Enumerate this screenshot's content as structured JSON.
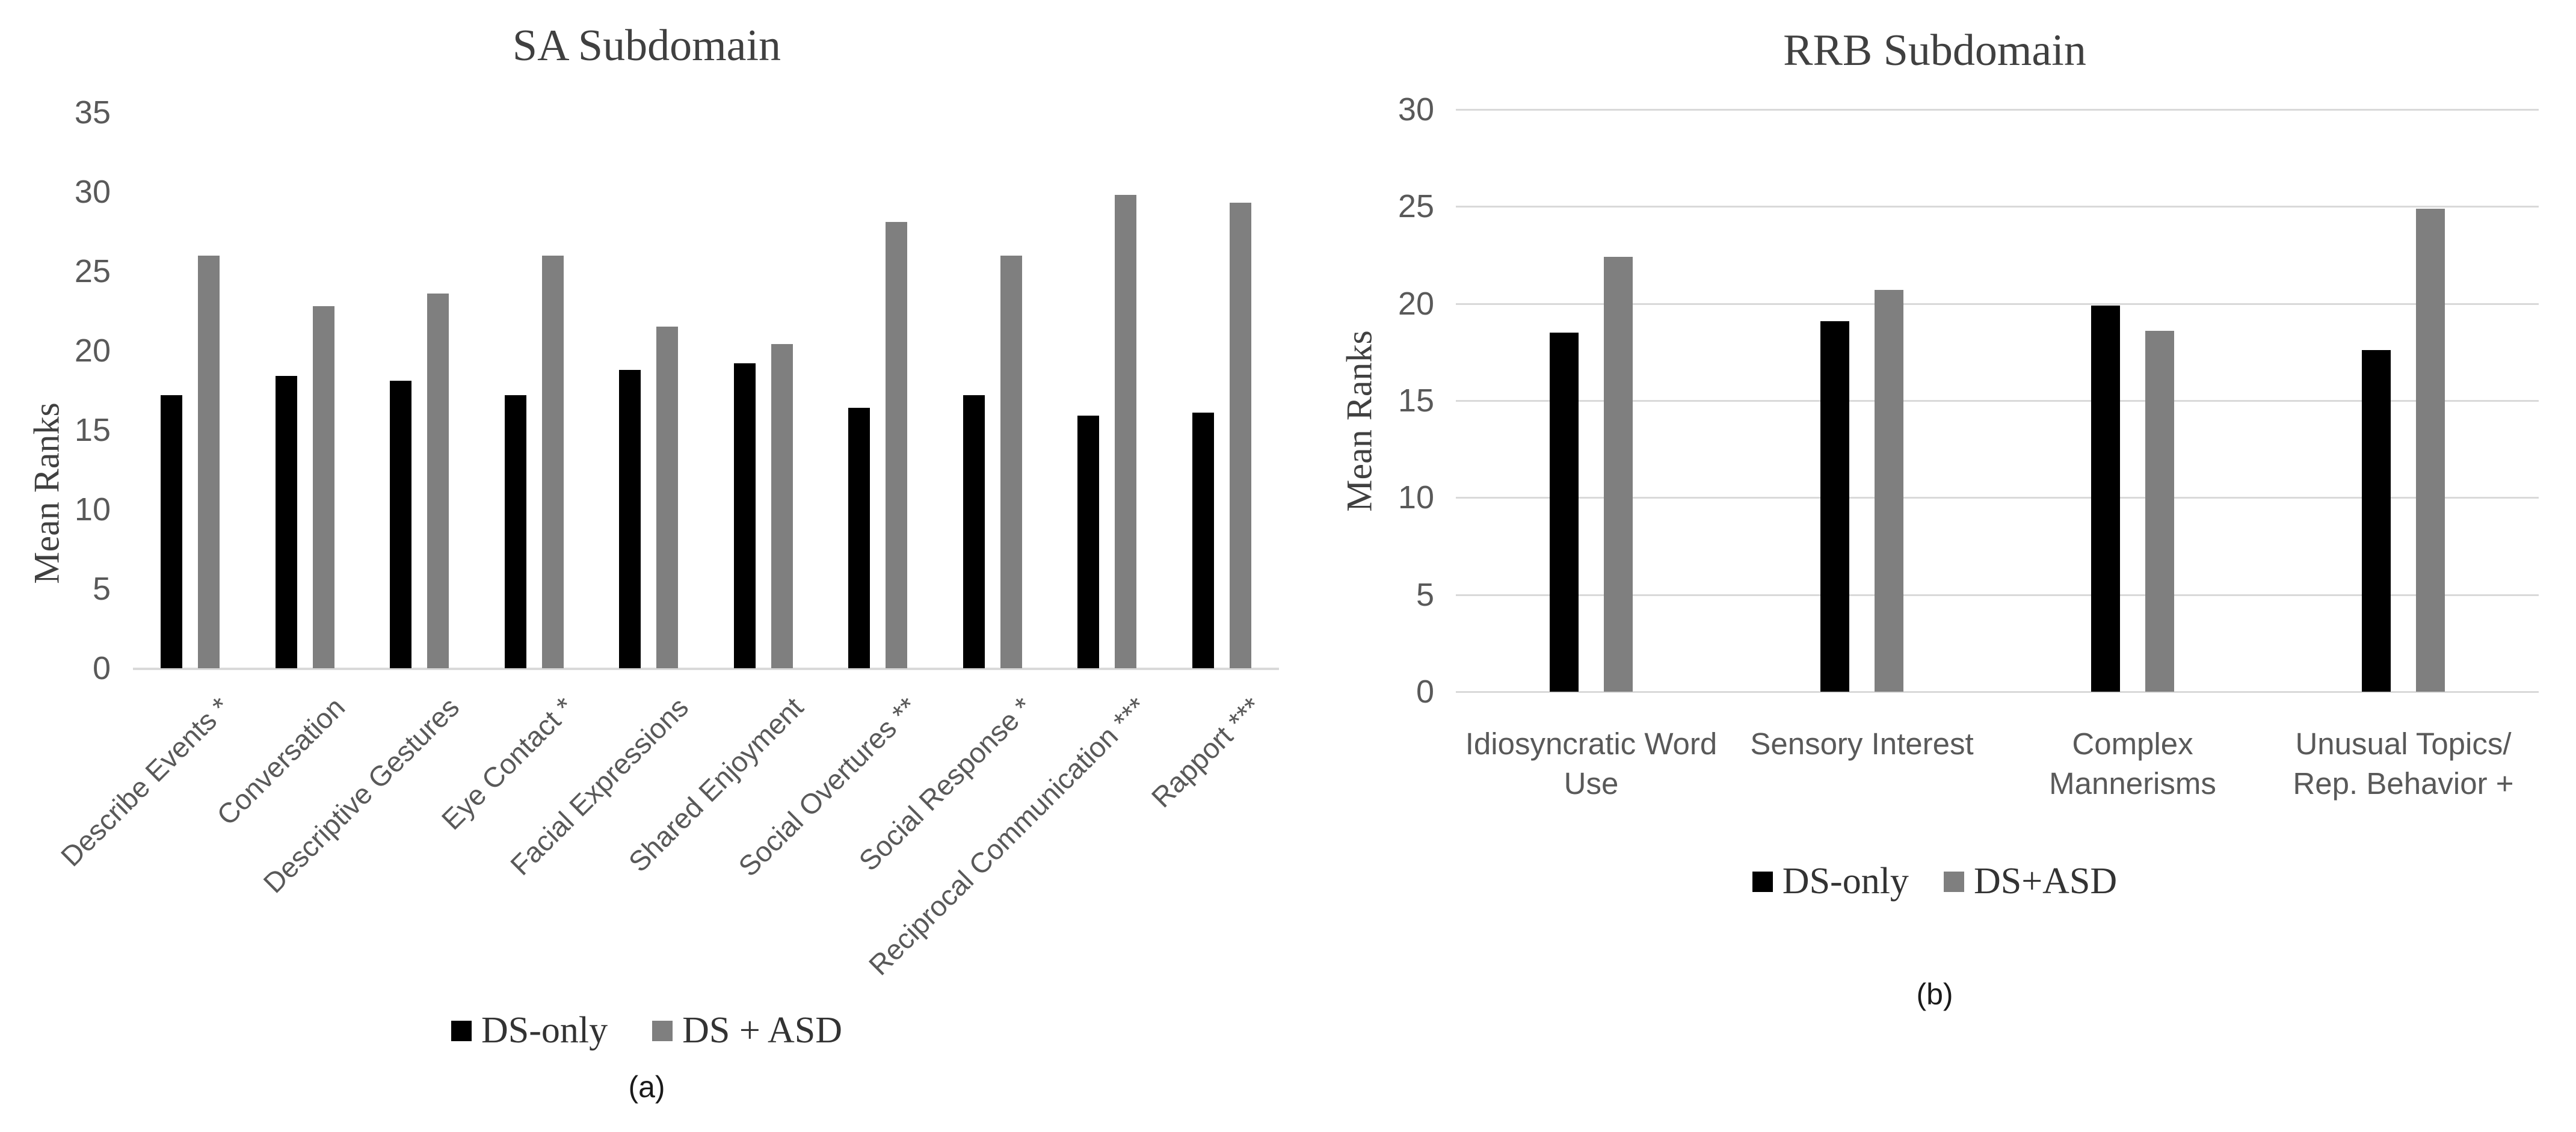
{
  "figure": {
    "captions": {
      "a": "(a)",
      "b": "(b)"
    }
  },
  "colors": {
    "ds_only_bar": "#000000",
    "ds_asd_bar": "#7f7f7f",
    "gridline": "#d9d9d9",
    "title_text": "#404040",
    "axis_text": "#595959"
  },
  "chart_data": [
    {
      "type": "bar",
      "title": "SA Subdomain",
      "xlabel": "",
      "ylabel": "Mean Ranks",
      "ylim": [
        0,
        35
      ],
      "ytick_step": 5,
      "grid": false,
      "legend_position": "bottom",
      "xtick_rotation": 45,
      "caption": "(a)",
      "categories": [
        "Describe Events *",
        "Conversation",
        "Descriptive Gestures",
        "Eye Contact *",
        "Facial Expressions",
        "Shared Enjoyment",
        "Social Overtures **",
        "Social Response *",
        "Reciprocal Communication ***",
        "Rapport ***"
      ],
      "series": [
        {
          "name": "DS-only",
          "color": "#000000",
          "values": [
            17.2,
            18.4,
            18.1,
            17.2,
            18.8,
            19.2,
            16.4,
            17.2,
            15.9,
            16.1
          ]
        },
        {
          "name": "DS + ASD",
          "color": "#7f7f7f",
          "values": [
            26.0,
            22.8,
            23.6,
            26.0,
            21.5,
            20.4,
            28.1,
            26.0,
            29.8,
            29.3
          ]
        }
      ]
    },
    {
      "type": "bar",
      "title": "RRB Subdomain",
      "xlabel": "",
      "ylabel": "Mean Ranks",
      "ylim": [
        0,
        30
      ],
      "ytick_step": 5,
      "grid": true,
      "legend_position": "bottom",
      "xtick_rotation": 0,
      "caption": "(b)",
      "categories": [
        "Idiosyncratic Word\nUse",
        "Sensory Interest",
        "Complex\nMannerisms",
        "Unusual Topics/\nRep. Behavior +"
      ],
      "series": [
        {
          "name": "DS-only",
          "color": "#000000",
          "values": [
            18.5,
            19.1,
            19.9,
            17.6
          ]
        },
        {
          "name": "DS+ASD",
          "color": "#7f7f7f",
          "values": [
            22.4,
            20.7,
            18.6,
            24.9
          ]
        }
      ]
    }
  ]
}
